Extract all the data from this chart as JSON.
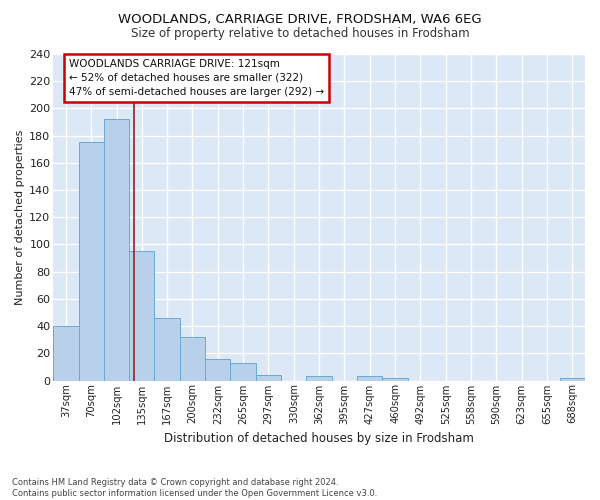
{
  "title1": "WOODLANDS, CARRIAGE DRIVE, FRODSHAM, WA6 6EG",
  "title2": "Size of property relative to detached houses in Frodsham",
  "xlabel": "Distribution of detached houses by size in Frodsham",
  "ylabel": "Number of detached properties",
  "footnote": "Contains HM Land Registry data © Crown copyright and database right 2024.\nContains public sector information licensed under the Open Government Licence v3.0.",
  "bar_labels": [
    "37sqm",
    "70sqm",
    "102sqm",
    "135sqm",
    "167sqm",
    "200sqm",
    "232sqm",
    "265sqm",
    "297sqm",
    "330sqm",
    "362sqm",
    "395sqm",
    "427sqm",
    "460sqm",
    "492sqm",
    "525sqm",
    "558sqm",
    "590sqm",
    "623sqm",
    "655sqm",
    "688sqm"
  ],
  "bar_values": [
    40,
    175,
    192,
    95,
    46,
    32,
    16,
    13,
    4,
    0,
    3,
    0,
    3,
    2,
    0,
    0,
    0,
    0,
    0,
    0,
    2
  ],
  "bar_color": "#b8d0ea",
  "bar_edge_color": "#6aabd4",
  "background_color": "#dce8f5",
  "plot_bg_color": "#dce8f5",
  "grid_color": "#ffffff",
  "fig_bg_color": "#ffffff",
  "annotation_text": "WOODLANDS CARRIAGE DRIVE: 121sqm\n← 52% of detached houses are smaller (322)\n47% of semi-detached houses are larger (292) →",
  "annotation_box_color": "#ffffff",
  "annotation_box_edge": "#cc0000",
  "vline_x": 2.68,
  "vline_color": "#9b2020",
  "ylim": [
    0,
    240
  ],
  "yticks": [
    0,
    20,
    40,
    60,
    80,
    100,
    120,
    140,
    160,
    180,
    200,
    220,
    240
  ]
}
